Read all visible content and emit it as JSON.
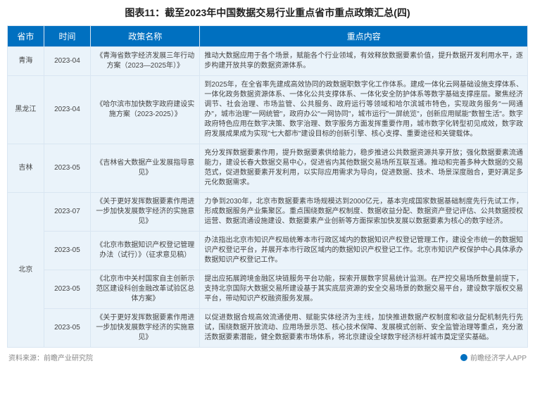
{
  "title": "图表11：截至2023年中国数据交易行业重点省市重点政策汇总(四)",
  "columns": [
    "省市",
    "时间",
    "政策名称",
    "重点内容"
  ],
  "columns_align": [
    "center",
    "center",
    "center",
    "justify"
  ],
  "column_widths_pct": [
    7,
    9,
    21,
    63
  ],
  "header_bg": "#0070c0",
  "header_fg": "#ffffff",
  "cell_bg": "#eaf3fa",
  "cell_fg": "#444444",
  "border_color": "#d9e6f2",
  "title_fontsize": 14,
  "cell_fontsize": 10,
  "header_fontsize": 12,
  "rows": [
    {
      "province": "青海",
      "province_rowspan": 1,
      "time": "2023-04",
      "name": "《青海省数字经济发展三年行动方案（2023—2025年）》",
      "content": "推动大数据应用于各个场景，赋能各个行业领域，有效释放数据要素价值，提升数据开发利用水平，逐步构建开放共享的数据资源体系。"
    },
    {
      "province": "黑龙江",
      "province_rowspan": 1,
      "time": "2023-04",
      "name": "《哈尔滨市加快数字政府建设实施方案（2023-2025）》",
      "content": "到2025年，在全省率先建成高效协同的政数据职数字化工作体系。建成一体化云网基础设施支撑体系、一体化政务数据资源体系、一体化公共支撑体系、一体化安全防护体系等数字基础支撑座层。聚焦经济调节、社会治理、市场监管、公共服务、政府运行等领域和哈尔滨城市特色，实现政务服务\"一网通办\"，城市治理\"一网统管\"，政府办公\"一网协同\"，城市运行\"一屏统览\"，创新应用赋能\"数智生活\"。数字政府特色应用在数字决策、数字治理、数字服务方面发挥重要作用，城市数字化转型初见成效，数字政府发展成果成为实现\"七大都市\"建设目标的创新引擎、核心支撑、重要途径和关键载体。"
    },
    {
      "province": "吉林",
      "province_rowspan": 1,
      "time": "2023-05",
      "name": "《吉林省大数据产业发展指导意见》",
      "content": "充分发挥数据要素作用，提升数据要素供给能力，稳步推进公共数据资源共享开放；强化数据要素流通能力，建设长春大数据交易中心，促进省内其他数据交易场所互联互通。推动和完善多种大数据的交易范式，促进数据要素开发利用，以实际应用需求为导向，促进数据、技术、场景深度融合，更好满足多元化数据需求。"
    },
    {
      "province": "北京",
      "province_rowspan": 4,
      "time": "2023-07",
      "name": "《关于更好发挥数据要素作用进一步加快发展数字经济的实施意见》",
      "content": "力争到2030年，北京市数据要素市场规模达到2000亿元，基本完成国家数据基础制度先行先试工作，形成数据服务产业集聚区。重点围绕数据产权制度、数据收益分配、数据资产登记评估、公共数据授权运营、数据流通设施建设、数据要素产业创新等方面探索加快发展以数据要素为核心的数字经济。"
    },
    {
      "province": "",
      "province_rowspan": 0,
      "time": "2023-05",
      "name": "《北京市数据知识产权登记管理办法（试行）》（征求意见稿）",
      "content": "办法指出北京市知识产权局统筹本市行政区域内的数据知识产权登记管理工作，建设全市统一的数据知识产权登记平台，并展开本市行政区域内的数据知识产权登记工作。北京市知识产权保护中心具体承办数据知识产权登记工作。"
    },
    {
      "province": "",
      "province_rowspan": 0,
      "time": "2023-05",
      "name": "《北京市中关村国家自主创新示范区建设科创金融改革试验区总体方案》",
      "content": "提出应拓展跨境金融区块链服务平台功能，探索开展数字贸易统计监测。在严控交易场所数量前提下，支持北京国际大数据交易所建设基于其实底层资源的安全交易场景的数据交易平台，建设数字版权交易平台，带动知识产权融资服务发展。"
    },
    {
      "province": "",
      "province_rowspan": 0,
      "time": "2023-05",
      "name": "《关于更好发挥数据要素作用进一步加快发展数字经济的实施意见》",
      "content": "以促进数据合规高效流通使用、赋能实体经济为主线，加快推进数据产权制度和收益分配机制先行先试，围绕数据开放流动、应用场景示范、核心技术保障、发展模式创新、安全监管治理等重点，充分激活数据要素潜能，健全数据要素市场体系，将北京建设全球数字经济标杆城市奠定坚实基础。"
    }
  ],
  "footer_source": "资料来源：前瞻产业研究院",
  "footer_right": "前瞻经济学人APP",
  "footer_logo_color": "#0070c0",
  "footer_fg": "#888888"
}
